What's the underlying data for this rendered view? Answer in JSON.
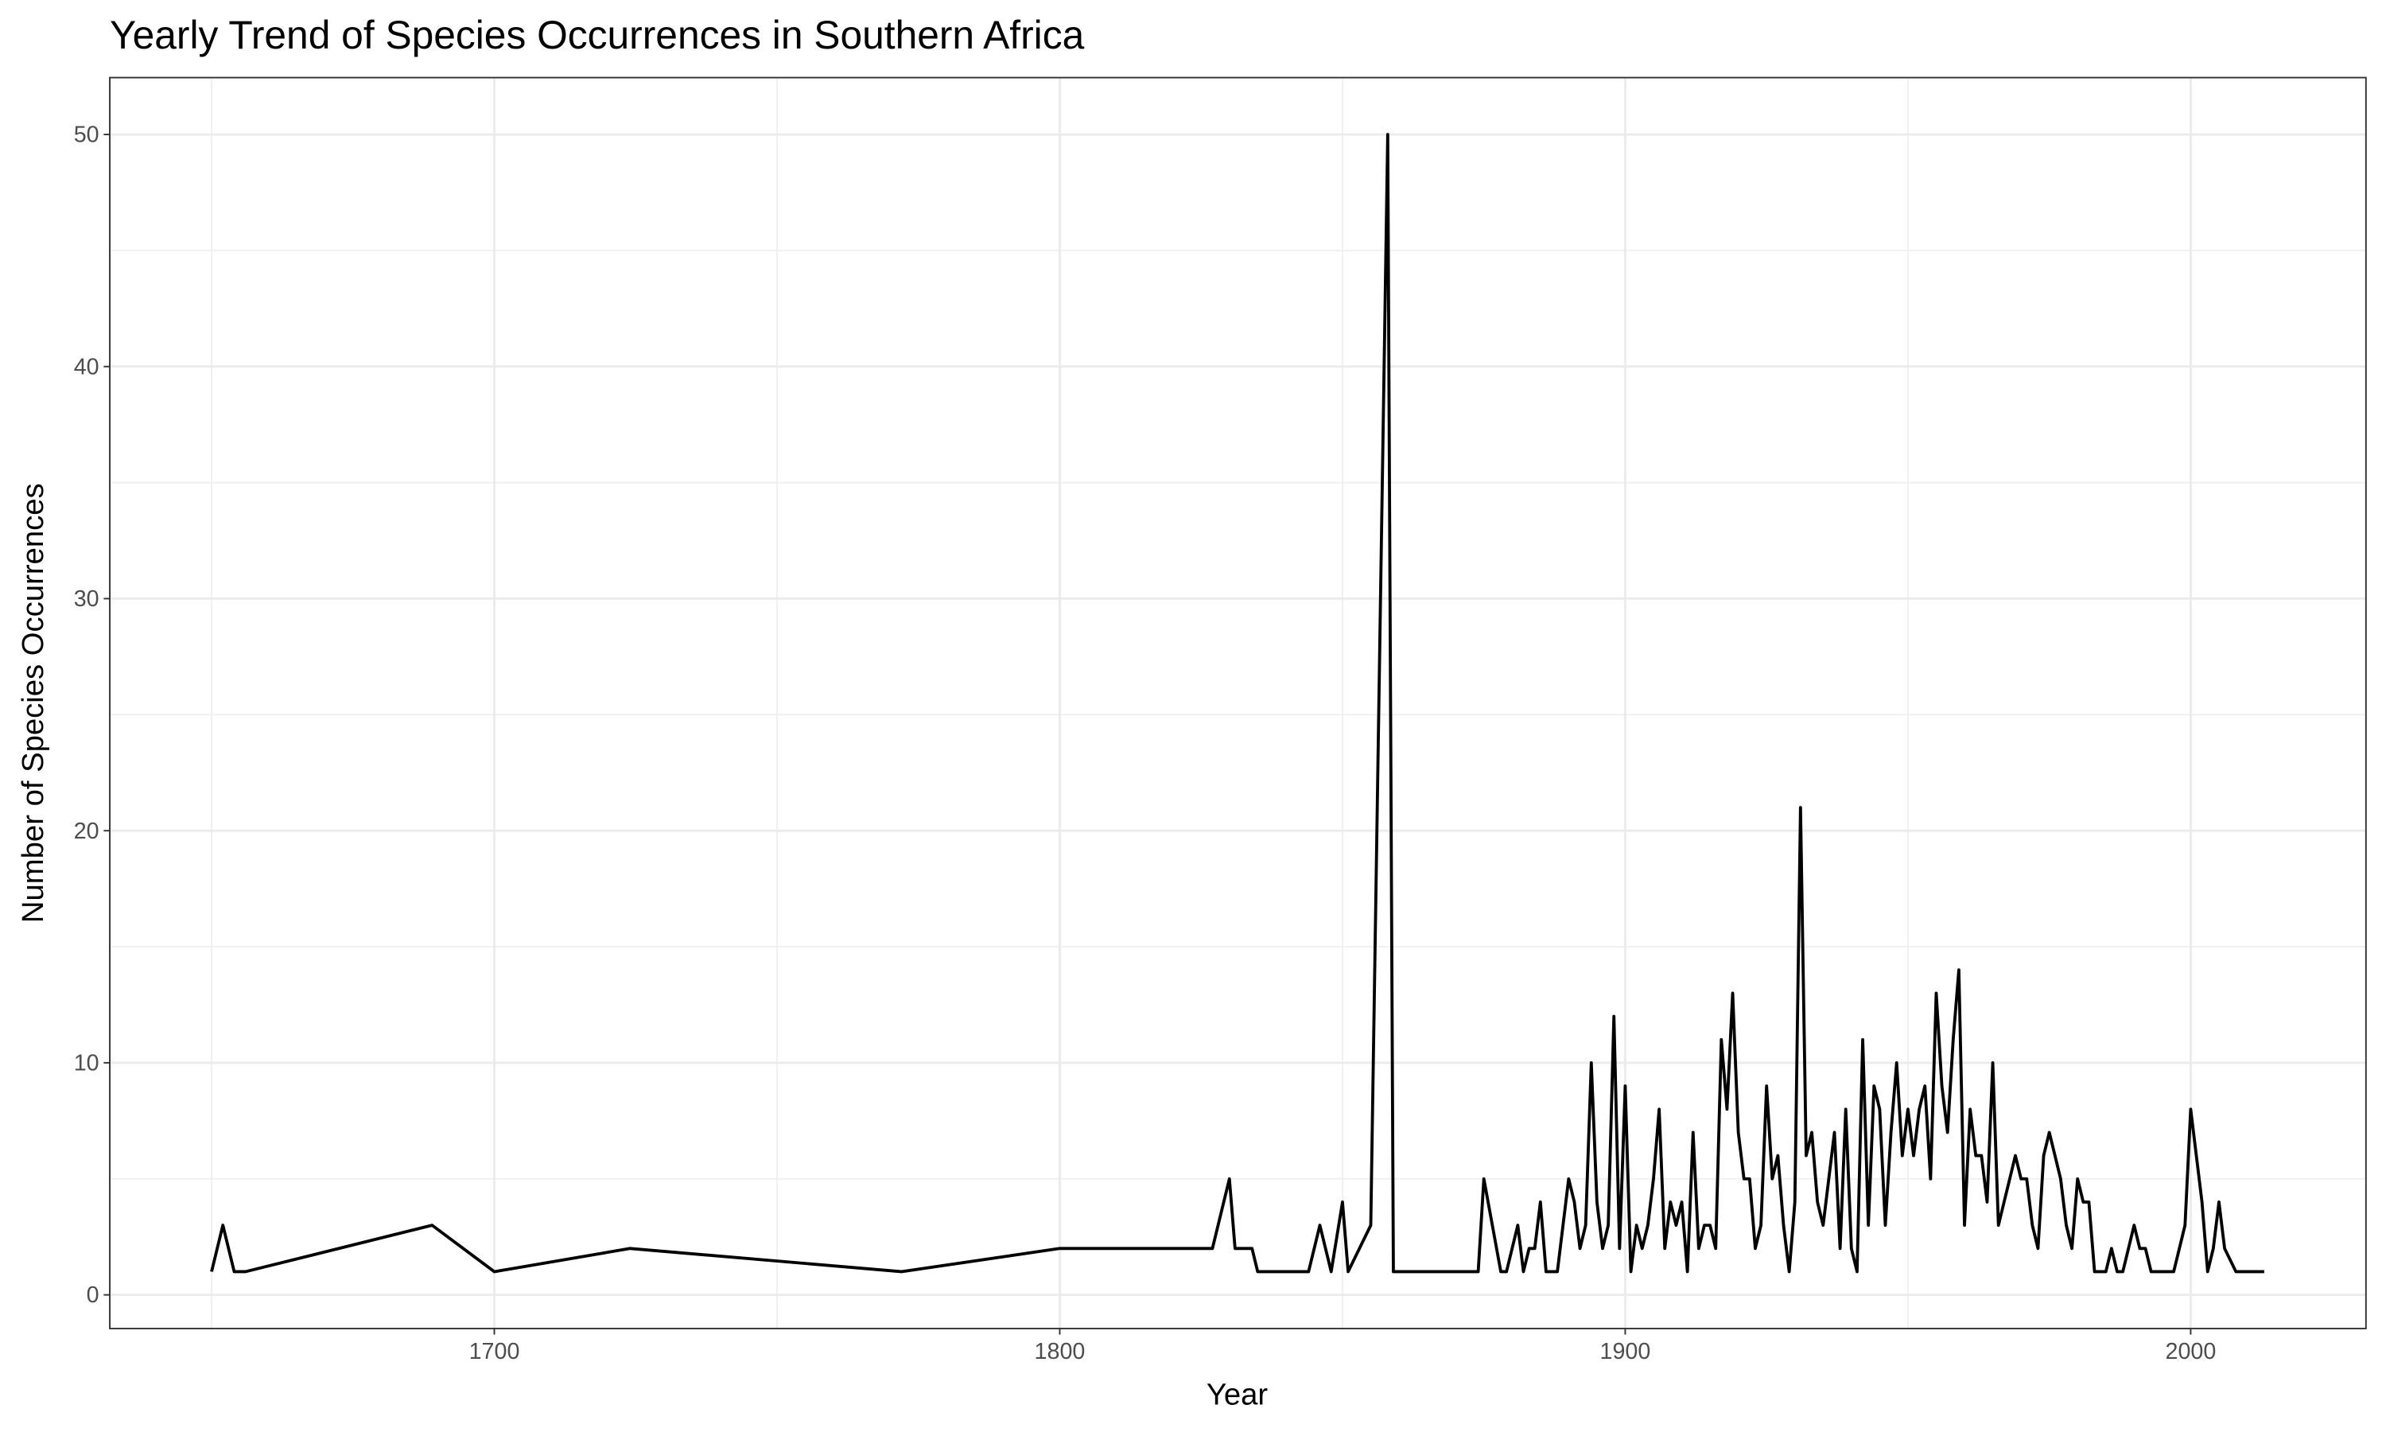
{
  "chart_data": {
    "type": "line",
    "title": "Yearly Trend of Species Occurrences in Southern Africa",
    "x_label": "Year",
    "y_label": "Number of Species Occurrences",
    "color": "#000000",
    "grid": true,
    "x": [
      1650,
      1652,
      1654,
      1656,
      1689,
      1700,
      1724,
      1772,
      1800,
      1827,
      1830,
      1831,
      1834,
      1835,
      1844,
      1846,
      1848,
      1850,
      1851,
      1855,
      1858,
      1859,
      1874,
      1875,
      1878,
      1879,
      1881,
      1882,
      1883,
      1884,
      1885,
      1886,
      1888,
      1890,
      1891,
      1892,
      1893,
      1894,
      1895,
      1896,
      1897,
      1898,
      1899,
      1900,
      1901,
      1902,
      1903,
      1904,
      1905,
      1906,
      1907,
      1908,
      1909,
      1910,
      1911,
      1912,
      1913,
      1914,
      1915,
      1916,
      1917,
      1918,
      1919,
      1920,
      1921,
      1922,
      1923,
      1924,
      1925,
      1926,
      1927,
      1928,
      1929,
      1930,
      1931,
      1932,
      1933,
      1934,
      1935,
      1936,
      1937,
      1938,
      1939,
      1940,
      1941,
      1942,
      1943,
      1944,
      1945,
      1946,
      1947,
      1948,
      1949,
      1950,
      1951,
      1952,
      1953,
      1954,
      1955,
      1956,
      1957,
      1958,
      1959,
      1960,
      1961,
      1962,
      1963,
      1964,
      1965,
      1966,
      1967,
      1968,
      1969,
      1970,
      1971,
      1972,
      1973,
      1974,
      1975,
      1976,
      1977,
      1978,
      1979,
      1980,
      1981,
      1982,
      1983,
      1984,
      1985,
      1986,
      1987,
      1988,
      1989,
      1990,
      1991,
      1992,
      1993,
      1994,
      1997,
      1999,
      2000,
      2002,
      2003,
      2004,
      2005,
      2006,
      2008,
      2013
    ],
    "values": [
      1,
      3,
      1,
      1,
      3,
      1,
      2,
      1,
      2,
      2,
      5,
      2,
      2,
      1,
      1,
      3,
      1,
      4,
      1,
      3,
      50,
      1,
      1,
      5,
      1,
      1,
      3,
      1,
      2,
      2,
      4,
      1,
      1,
      5,
      4,
      2,
      3,
      10,
      4,
      2,
      3,
      12,
      2,
      9,
      1,
      3,
      2,
      3,
      5,
      8,
      2,
      4,
      3,
      4,
      1,
      7,
      2,
      3,
      3,
      2,
      11,
      8,
      13,
      7,
      5,
      5,
      2,
      3,
      9,
      5,
      6,
      3,
      1,
      4,
      21,
      6,
      7,
      4,
      3,
      5,
      7,
      2,
      8,
      2,
      1,
      11,
      3,
      9,
      8,
      3,
      7,
      10,
      6,
      8,
      6,
      8,
      9,
      5,
      13,
      9,
      7,
      11,
      14,
      3,
      8,
      6,
      6,
      4,
      10,
      3,
      4,
      5,
      6,
      5,
      5,
      3,
      2,
      6,
      7,
      6,
      5,
      3,
      2,
      5,
      4,
      4,
      1,
      1,
      1,
      2,
      1,
      1,
      2,
      3,
      2,
      2,
      1,
      1,
      1,
      3,
      8,
      4,
      1,
      2,
      4,
      2,
      1,
      1
    ],
    "xlim": [
      1632,
      2031
    ],
    "ylim": [
      -1.45,
      52.45
    ],
    "xticks": [
      1700,
      1800,
      1900,
      2000
    ],
    "yticks": [
      0,
      10,
      20,
      30,
      40,
      50
    ]
  }
}
